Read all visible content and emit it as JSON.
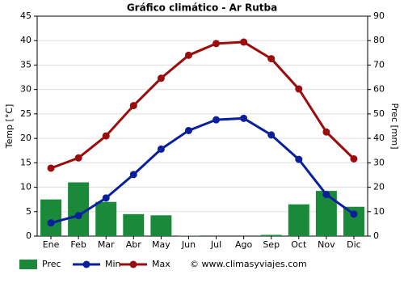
{
  "chart_data": {
    "type": "bar-line",
    "title": "Gráfico climático - Ar Rutba",
    "y_label": "Temp [°C]",
    "y2_label": "Prec [mm]",
    "categories": [
      "Ene",
      "Feb",
      "Mar",
      "Abr",
      "May",
      "Jun",
      "Jul",
      "Ago",
      "Sep",
      "Oct",
      "Nov",
      "Dic"
    ],
    "series": [
      {
        "name": "Prec",
        "type": "bar",
        "axis": "y2",
        "color": "#1a8a3a",
        "values": [
          15,
          22,
          14,
          9,
          8.5,
          0.1,
          0,
          0,
          0.5,
          13,
          18.5,
          12
        ]
      },
      {
        "name": "Min",
        "type": "line",
        "color": "#0a1f9c",
        "values": [
          2.7,
          4.2,
          7.8,
          12.6,
          17.8,
          21.6,
          23.8,
          24.1,
          20.7,
          15.7,
          8.5,
          4.5
        ]
      },
      {
        "name": "Max",
        "type": "line",
        "color": "#9b0d0d",
        "values": [
          13.9,
          16.0,
          20.5,
          26.7,
          32.3,
          37.0,
          39.4,
          39.7,
          36.3,
          30.1,
          21.3,
          15.8
        ]
      }
    ],
    "ylim": [
      0,
      45
    ],
    "yticks": [
      0,
      5,
      10,
      15,
      20,
      25,
      30,
      35,
      40,
      45
    ],
    "y2lim": [
      0,
      90
    ],
    "y2ticks": [
      0,
      10,
      20,
      30,
      40,
      50,
      60,
      70,
      80,
      90
    ],
    "grid": true,
    "legend": "bottom",
    "source": "© www.climasyviajes.com"
  }
}
